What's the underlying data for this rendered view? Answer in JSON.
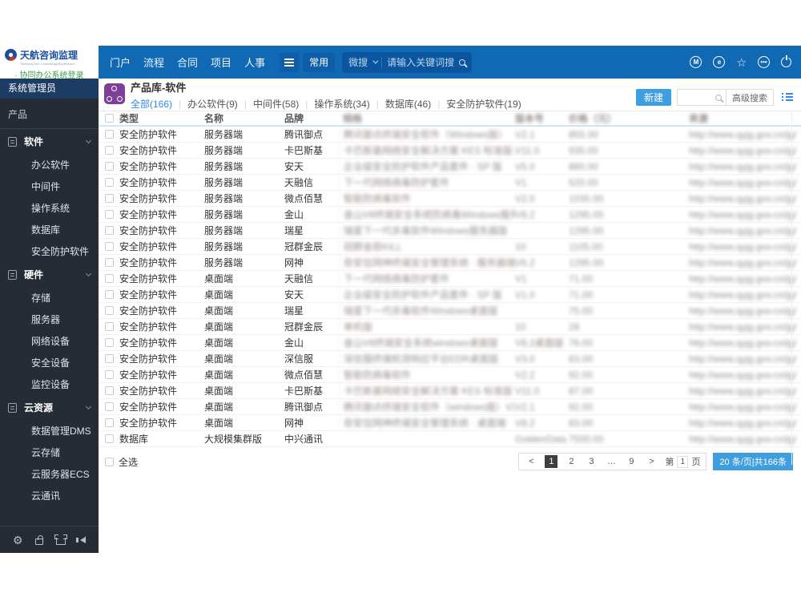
{
  "header": {
    "logo": {
      "title": "天航咨询监理",
      "subtitle": "Tianhang Info Consulting&Supervision",
      "login_link": "· 协同办公系统登录"
    },
    "nav": [
      "门户",
      "流程",
      "合同",
      "项目",
      "人事"
    ],
    "pinned_tab": "常用",
    "search": {
      "engine_label": "微搜",
      "placeholder": "请输入关键词搜"
    }
  },
  "sidebar": {
    "user_role": "系统管理员",
    "section": "产品",
    "groups": [
      {
        "label": "软件",
        "items": [
          "办公软件",
          "中间件",
          "操作系统",
          "数据库",
          "安全防护软件"
        ]
      },
      {
        "label": "硬件",
        "items": [
          "存储",
          "服务器",
          "网络设备",
          "安全设备",
          "监控设备"
        ]
      },
      {
        "label": "云资源",
        "items": [
          "数据管理DMS",
          "云存储",
          "云服务器ECS",
          "云通讯"
        ]
      }
    ]
  },
  "main": {
    "title": "产品库-软件",
    "tabs": [
      {
        "label": "全部(166)",
        "active": true
      },
      {
        "label": "办公软件(9)",
        "active": false
      },
      {
        "label": "中间件(58)",
        "active": false
      },
      {
        "label": "操作系统(34)",
        "active": false
      },
      {
        "label": "数据库(46)",
        "active": false
      },
      {
        "label": "安全防护软件(19)",
        "active": false
      }
    ],
    "new_button": "新建",
    "advanced_search": "高级搜索",
    "table": {
      "columns": [
        {
          "label": "类型",
          "blurred": false
        },
        {
          "label": "名称",
          "blurred": false
        },
        {
          "label": "品牌",
          "blurred": false
        },
        {
          "label": "规格",
          "blurred": true
        },
        {
          "label": "版本号",
          "blurred": true
        },
        {
          "label": "价格（元）",
          "blurred": true
        },
        {
          "label": "来源",
          "blurred": true
        }
      ],
      "rows": [
        {
          "type": "安全防护软件",
          "name": "服务器端",
          "brand": "腾讯御点",
          "spec": "腾讯御点终端安全软件（Windows版）",
          "version": "V2.1",
          "price": "855.00",
          "source": "http://www.qyjg.gov.cn/jg/"
        },
        {
          "type": "安全防护软件",
          "name": "服务器端",
          "brand": "卡巴斯基",
          "spec": "卡巴斯基网络安全解决方案 KES 标准版…",
          "version": "V11.0",
          "price": "935.00",
          "source": "http://www.qyjg.gov.cn/jg/"
        },
        {
          "type": "安全防护软件",
          "name": "服务器端",
          "brand": "安天",
          "spec": "企业级安全防护软件产品套件 · SP 版",
          "version": "V5.0",
          "price": "880.00",
          "source": "http://www.qyjg.gov.cn/jg/"
        },
        {
          "type": "安全防护软件",
          "name": "服务器端",
          "brand": "天融信",
          "spec": "下一代网络病毒防护套件",
          "version": "V1",
          "price": "520.00",
          "source": "http://www.qyjg.gov.cn/jg/"
        },
        {
          "type": "安全防护软件",
          "name": "服务器端",
          "brand": "微点佰慧",
          "spec": "智能防病毒软件",
          "version": "V2.0",
          "price": "1035.00",
          "source": "http://www.qyjg.gov.cn/jg/"
        },
        {
          "type": "安全防护软件",
          "name": "服务器端",
          "brand": "金山",
          "spec": "金山V8终端安全系统防病毒Windows服务器版",
          "version": "V8.2",
          "price": "1295.00",
          "source": "http://www.qyjg.gov.cn/jg/"
        },
        {
          "type": "安全防护软件",
          "name": "服务器端",
          "brand": "瑞星",
          "spec": "瑞星下一代杀毒软件Windows服务器版",
          "version": "",
          "price": "1295.00",
          "source": "http://www.qyjg.gov.cn/jg/"
        },
        {
          "type": "安全防护软件",
          "name": "服务器端",
          "brand": "冠群金辰",
          "spec": "冠群金辰KILL",
          "version": "10",
          "price": "1105.00",
          "source": "http://www.qyjg.gov.cn/jg/"
        },
        {
          "type": "安全防护软件",
          "name": "服务器端",
          "brand": "网神",
          "spec": "奇安信网神终端安全管理系统 · 服务器端",
          "version": "V6.2",
          "price": "1295.00",
          "source": "http://www.qyjg.gov.cn/jg/"
        },
        {
          "type": "安全防护软件",
          "name": "桌面端",
          "brand": "天融信",
          "spec": "下一代网络病毒防护套件",
          "version": "V1",
          "price": "71.00",
          "source": "http://www.qyjg.gov.cn/jg/"
        },
        {
          "type": "安全防护软件",
          "name": "桌面端",
          "brand": "安天",
          "spec": "企业级安全防护软件产品套件 · SP 版",
          "version": "V1.0",
          "price": "71.00",
          "source": "http://www.qyjg.gov.cn/jg/"
        },
        {
          "type": "安全防护软件",
          "name": "桌面端",
          "brand": "瑞星",
          "spec": "瑞星下一代杀毒软件Windows桌面版",
          "version": "",
          "price": "75.00",
          "source": "http://www.qyjg.gov.cn/jg/"
        },
        {
          "type": "安全防护软件",
          "name": "桌面端",
          "brand": "冠群金辰",
          "spec": "单机版",
          "version": "10",
          "price": "28",
          "source": "http://www.qyjg.gov.cn/jg/"
        },
        {
          "type": "安全防护软件",
          "name": "桌面端",
          "brand": "金山",
          "spec": "金山V8终端安全系统windows桌面版",
          "version": "V8.2桌面版",
          "price": "76.00",
          "source": "http://www.qyjg.gov.cn/jg/"
        },
        {
          "type": "安全防护软件",
          "name": "桌面端",
          "brand": "深信服",
          "spec": "深信服终端检测响应平台EDR桌面版",
          "version": "V3.0",
          "price": "83.00",
          "source": "http://www.qyjg.gov.cn/jg/"
        },
        {
          "type": "安全防护软件",
          "name": "桌面端",
          "brand": "微点佰慧",
          "spec": "智能防病毒软件",
          "version": "V2.2",
          "price": "92.00",
          "source": "http://www.qyjg.gov.cn/jg/"
        },
        {
          "type": "安全防护软件",
          "name": "桌面端",
          "brand": "卡巴斯基",
          "spec": "卡巴斯基网络安全解决方案 KES 标准版 · KES…",
          "version": "V11.0",
          "price": "87.00",
          "source": "http://www.qyjg.gov.cn/jg/"
        },
        {
          "type": "安全防护软件",
          "name": "桌面端",
          "brand": "腾讯御点",
          "spec": "腾讯御点终端安全软件（windows版）V2.1",
          "version": "V2.1",
          "price": "92.00",
          "source": "http://www.qyjg.gov.cn/jg/"
        },
        {
          "type": "安全防护软件",
          "name": "桌面端",
          "brand": "网神",
          "spec": "奇安信网神终端安全管理系统 · 桌面端",
          "version": "V8.2",
          "price": "83.00",
          "source": "http://www.qyjg.gov.cn/jg/"
        },
        {
          "type": "数据库",
          "name": "大规模集群版",
          "brand": "中兴通讯",
          "spec": "",
          "version": "GoldenData s…",
          "price": "7500.00",
          "source": "http://www.qyjg.gov.cn/jg/"
        }
      ]
    },
    "select_all": "全选",
    "pagination": {
      "pages": [
        "<",
        "1",
        "2",
        "3",
        "…",
        "9",
        ">"
      ],
      "active": "1",
      "jump_prefix": "第",
      "jump_value": "1",
      "jump_suffix": "页",
      "summary": "20 条/页|共166条"
    }
  }
}
